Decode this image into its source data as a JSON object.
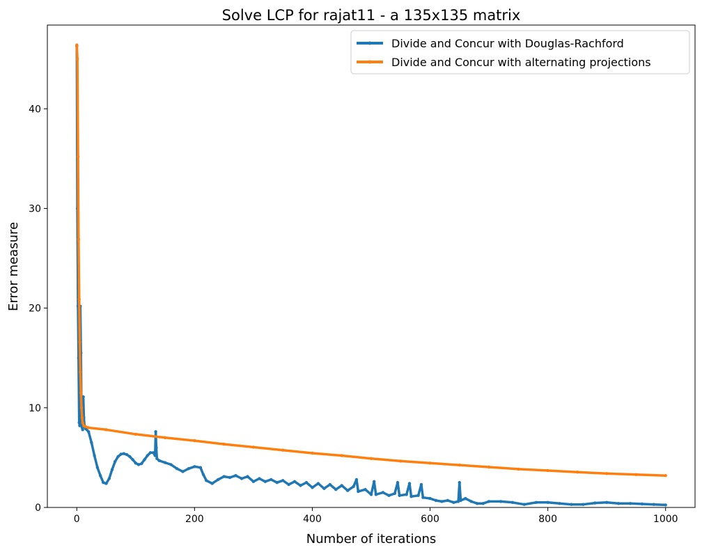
{
  "chart_data": {
    "type": "line",
    "title": "Solve LCP for rajat11 - a 135x135 matrix",
    "xlabel": "Number of iterations",
    "ylabel": "Error measure",
    "xlim": [
      -50,
      1050
    ],
    "ylim": [
      0,
      48.4
    ],
    "xticks": [
      0,
      200,
      400,
      600,
      800,
      1000
    ],
    "yticks": [
      0,
      10,
      20,
      30,
      40
    ],
    "grid": false,
    "legend_position": "top-right",
    "series": [
      {
        "name": "Divide and Concur with Douglas-Rachford",
        "color": "#1f77b4",
        "points": [
          [
            0,
            46.3
          ],
          [
            1,
            30
          ],
          [
            2,
            20.2
          ],
          [
            3,
            15
          ],
          [
            4,
            8.5
          ],
          [
            5,
            8.2
          ],
          [
            6,
            20.2
          ],
          [
            7,
            15.5
          ],
          [
            8,
            9.5
          ],
          [
            9,
            8.0
          ],
          [
            10,
            7.8
          ],
          [
            11,
            11.1
          ],
          [
            12,
            9.0
          ],
          [
            13,
            8.2
          ],
          [
            15,
            7.9
          ],
          [
            20,
            7.6
          ],
          [
            25,
            6.5
          ],
          [
            30,
            5.2
          ],
          [
            35,
            4.0
          ],
          [
            40,
            3.2
          ],
          [
            45,
            2.5
          ],
          [
            50,
            2.4
          ],
          [
            55,
            2.9
          ],
          [
            60,
            3.8
          ],
          [
            65,
            4.6
          ],
          [
            70,
            5.1
          ],
          [
            75,
            5.35
          ],
          [
            80,
            5.4
          ],
          [
            85,
            5.3
          ],
          [
            90,
            5.1
          ],
          [
            95,
            4.8
          ],
          [
            100,
            4.45
          ],
          [
            105,
            4.3
          ],
          [
            110,
            4.4
          ],
          [
            115,
            4.8
          ],
          [
            120,
            5.2
          ],
          [
            125,
            5.5
          ],
          [
            130,
            5.5
          ],
          [
            133,
            5.2
          ],
          [
            134,
            7.6
          ],
          [
            135,
            6.0
          ],
          [
            136,
            4.9
          ],
          [
            140,
            4.7
          ],
          [
            150,
            4.5
          ],
          [
            160,
            4.3
          ],
          [
            170,
            3.9
          ],
          [
            180,
            3.6
          ],
          [
            190,
            3.9
          ],
          [
            200,
            4.1
          ],
          [
            210,
            4.0
          ],
          [
            215,
            3.3
          ],
          [
            220,
            2.7
          ],
          [
            230,
            2.4
          ],
          [
            240,
            2.8
          ],
          [
            250,
            3.1
          ],
          [
            260,
            3.0
          ],
          [
            270,
            3.2
          ],
          [
            280,
            2.9
          ],
          [
            290,
            3.1
          ],
          [
            300,
            2.6
          ],
          [
            310,
            2.9
          ],
          [
            320,
            2.6
          ],
          [
            330,
            2.8
          ],
          [
            340,
            2.5
          ],
          [
            350,
            2.7
          ],
          [
            360,
            2.3
          ],
          [
            370,
            2.6
          ],
          [
            380,
            2.2
          ],
          [
            390,
            2.5
          ],
          [
            400,
            2.0
          ],
          [
            410,
            2.4
          ],
          [
            420,
            1.9
          ],
          [
            430,
            2.3
          ],
          [
            440,
            1.8
          ],
          [
            450,
            2.2
          ],
          [
            460,
            1.7
          ],
          [
            470,
            2.1
          ],
          [
            475,
            2.8
          ],
          [
            478,
            1.6
          ],
          [
            490,
            1.8
          ],
          [
            500,
            1.3
          ],
          [
            505,
            2.6
          ],
          [
            508,
            1.3
          ],
          [
            520,
            1.5
          ],
          [
            530,
            1.2
          ],
          [
            540,
            1.4
          ],
          [
            545,
            2.5
          ],
          [
            548,
            1.2
          ],
          [
            560,
            1.3
          ],
          [
            565,
            2.4
          ],
          [
            568,
            1.1
          ],
          [
            580,
            1.2
          ],
          [
            585,
            2.3
          ],
          [
            588,
            1.0
          ],
          [
            600,
            0.9
          ],
          [
            610,
            0.7
          ],
          [
            620,
            0.6
          ],
          [
            630,
            0.7
          ],
          [
            640,
            0.5
          ],
          [
            648,
            0.6
          ],
          [
            650,
            2.5
          ],
          [
            652,
            0.7
          ],
          [
            660,
            0.9
          ],
          [
            670,
            0.6
          ],
          [
            680,
            0.4
          ],
          [
            690,
            0.4
          ],
          [
            700,
            0.6
          ],
          [
            720,
            0.6
          ],
          [
            740,
            0.5
          ],
          [
            760,
            0.3
          ],
          [
            780,
            0.5
          ],
          [
            800,
            0.5
          ],
          [
            820,
            0.4
          ],
          [
            840,
            0.3
          ],
          [
            860,
            0.3
          ],
          [
            880,
            0.45
          ],
          [
            900,
            0.5
          ],
          [
            920,
            0.4
          ],
          [
            940,
            0.4
          ],
          [
            960,
            0.35
          ],
          [
            980,
            0.3
          ],
          [
            1000,
            0.25
          ]
        ]
      },
      {
        "name": "Divide and Concur with alternating projections",
        "color": "#ff7f0e",
        "points": [
          [
            0,
            46.4
          ],
          [
            1,
            45
          ],
          [
            2,
            35.2
          ],
          [
            3,
            26.9
          ],
          [
            4,
            20.9
          ],
          [
            5,
            16.6
          ],
          [
            6,
            13.6
          ],
          [
            7,
            11.5
          ],
          [
            8,
            10.0
          ],
          [
            9,
            9.0
          ],
          [
            10,
            8.5
          ],
          [
            12,
            8.2
          ],
          [
            15,
            8.1
          ],
          [
            20,
            8.0
          ],
          [
            50,
            7.8
          ],
          [
            100,
            7.35
          ],
          [
            150,
            7.0
          ],
          [
            200,
            6.7
          ],
          [
            250,
            6.35
          ],
          [
            300,
            6.05
          ],
          [
            350,
            5.75
          ],
          [
            400,
            5.45
          ],
          [
            450,
            5.2
          ],
          [
            500,
            4.9
          ],
          [
            550,
            4.65
          ],
          [
            600,
            4.45
          ],
          [
            650,
            4.25
          ],
          [
            700,
            4.05
          ],
          [
            750,
            3.85
          ],
          [
            800,
            3.7
          ],
          [
            850,
            3.55
          ],
          [
            900,
            3.4
          ],
          [
            950,
            3.3
          ],
          [
            1000,
            3.2
          ]
        ]
      }
    ]
  }
}
